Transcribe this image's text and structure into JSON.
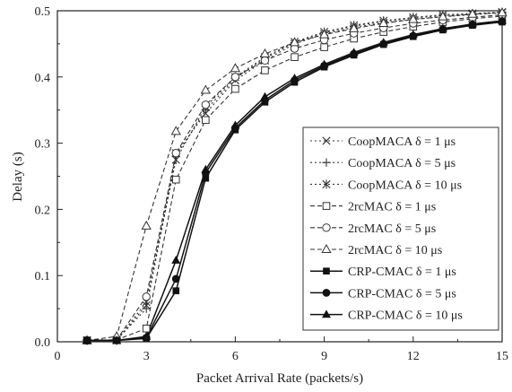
{
  "chart_data": {
    "type": "line",
    "xlabel": "Packet Arrival Rate (packets/s)",
    "ylabel": "Delay (s)",
    "xlim": [
      0,
      15
    ],
    "ylim": [
      0,
      0.5
    ],
    "xticks": [
      0,
      3,
      6,
      9,
      12,
      15
    ],
    "xtick_labels": [
      "0",
      "3",
      "6",
      "9",
      "12",
      "15"
    ],
    "yticks": [
      0,
      0.1,
      0.2,
      0.3,
      0.4,
      0.5
    ],
    "ytick_labels": [
      "0.0",
      "0.1",
      "0.2",
      "0.3",
      "0.4",
      "0.5"
    ],
    "grid": false,
    "legend_position": "right",
    "x": [
      1,
      2,
      3,
      4,
      5,
      6,
      7,
      8,
      9,
      10,
      11,
      12,
      13,
      14,
      15
    ],
    "series": [
      {
        "name": "CoopMACA  δ = 1 μs",
        "marker": "x",
        "line": "dotted",
        "color": "#333333",
        "values": [
          0.002,
          0.002,
          0.055,
          0.285,
          0.345,
          0.395,
          0.425,
          0.45,
          0.465,
          0.475,
          0.482,
          0.487,
          0.491,
          0.494,
          0.497
        ]
      },
      {
        "name": "CoopMACA  δ = 5 μs",
        "marker": "plus",
        "line": "dotted",
        "color": "#333333",
        "values": [
          0.002,
          0.003,
          0.05,
          0.28,
          0.35,
          0.398,
          0.428,
          0.452,
          0.467,
          0.477,
          0.484,
          0.489,
          0.493,
          0.495,
          0.498
        ]
      },
      {
        "name": "CoopMACA  δ = 10 μs",
        "marker": "asterisk",
        "line": "dotted",
        "color": "#333333",
        "values": [
          0.002,
          0.002,
          0.06,
          0.275,
          0.355,
          0.4,
          0.43,
          0.453,
          0.468,
          0.478,
          0.485,
          0.49,
          0.494,
          0.496,
          0.498
        ]
      },
      {
        "name": "2rcMAC  δ = 1 μs",
        "marker": "square-open",
        "line": "dashed",
        "color": "#333333",
        "values": [
          0.002,
          0.003,
          0.02,
          0.245,
          0.335,
          0.382,
          0.41,
          0.43,
          0.445,
          0.458,
          0.468,
          0.476,
          0.483,
          0.488,
          0.492
        ]
      },
      {
        "name": "2rcMAC  δ = 5 μs",
        "marker": "circle-open",
        "line": "dashed",
        "color": "#333333",
        "values": [
          0.002,
          0.003,
          0.068,
          0.285,
          0.358,
          0.4,
          0.425,
          0.443,
          0.456,
          0.466,
          0.474,
          0.481,
          0.486,
          0.49,
          0.494
        ]
      },
      {
        "name": "2rcMAC  δ = 10 μs",
        "marker": "triangle-open",
        "line": "dashed",
        "color": "#333333",
        "values": [
          0.002,
          0.008,
          0.175,
          0.318,
          0.38,
          0.413,
          0.435,
          0.452,
          0.464,
          0.473,
          0.481,
          0.487,
          0.491,
          0.495,
          0.497
        ]
      },
      {
        "name": "CRP-CMAC  δ = 1 μs",
        "marker": "square-filled",
        "line": "solid",
        "color": "#111111",
        "values": [
          0.002,
          0.002,
          0.005,
          0.077,
          0.247,
          0.32,
          0.362,
          0.392,
          0.415,
          0.433,
          0.449,
          0.461,
          0.471,
          0.478,
          0.483
        ]
      },
      {
        "name": "CRP-CMAC  δ = 5 μs",
        "marker": "circle-filled",
        "line": "solid",
        "color": "#111111",
        "values": [
          0.002,
          0.002,
          0.006,
          0.095,
          0.255,
          0.323,
          0.365,
          0.395,
          0.417,
          0.435,
          0.45,
          0.462,
          0.472,
          0.479,
          0.484
        ]
      },
      {
        "name": "CRP-CMAC  δ = 10 μs",
        "marker": "triangle-filled",
        "line": "solid",
        "color": "#111111",
        "values": [
          0.002,
          0.002,
          0.008,
          0.123,
          0.26,
          0.327,
          0.37,
          0.398,
          0.419,
          0.437,
          0.452,
          0.464,
          0.473,
          0.48,
          0.485
        ]
      }
    ]
  }
}
